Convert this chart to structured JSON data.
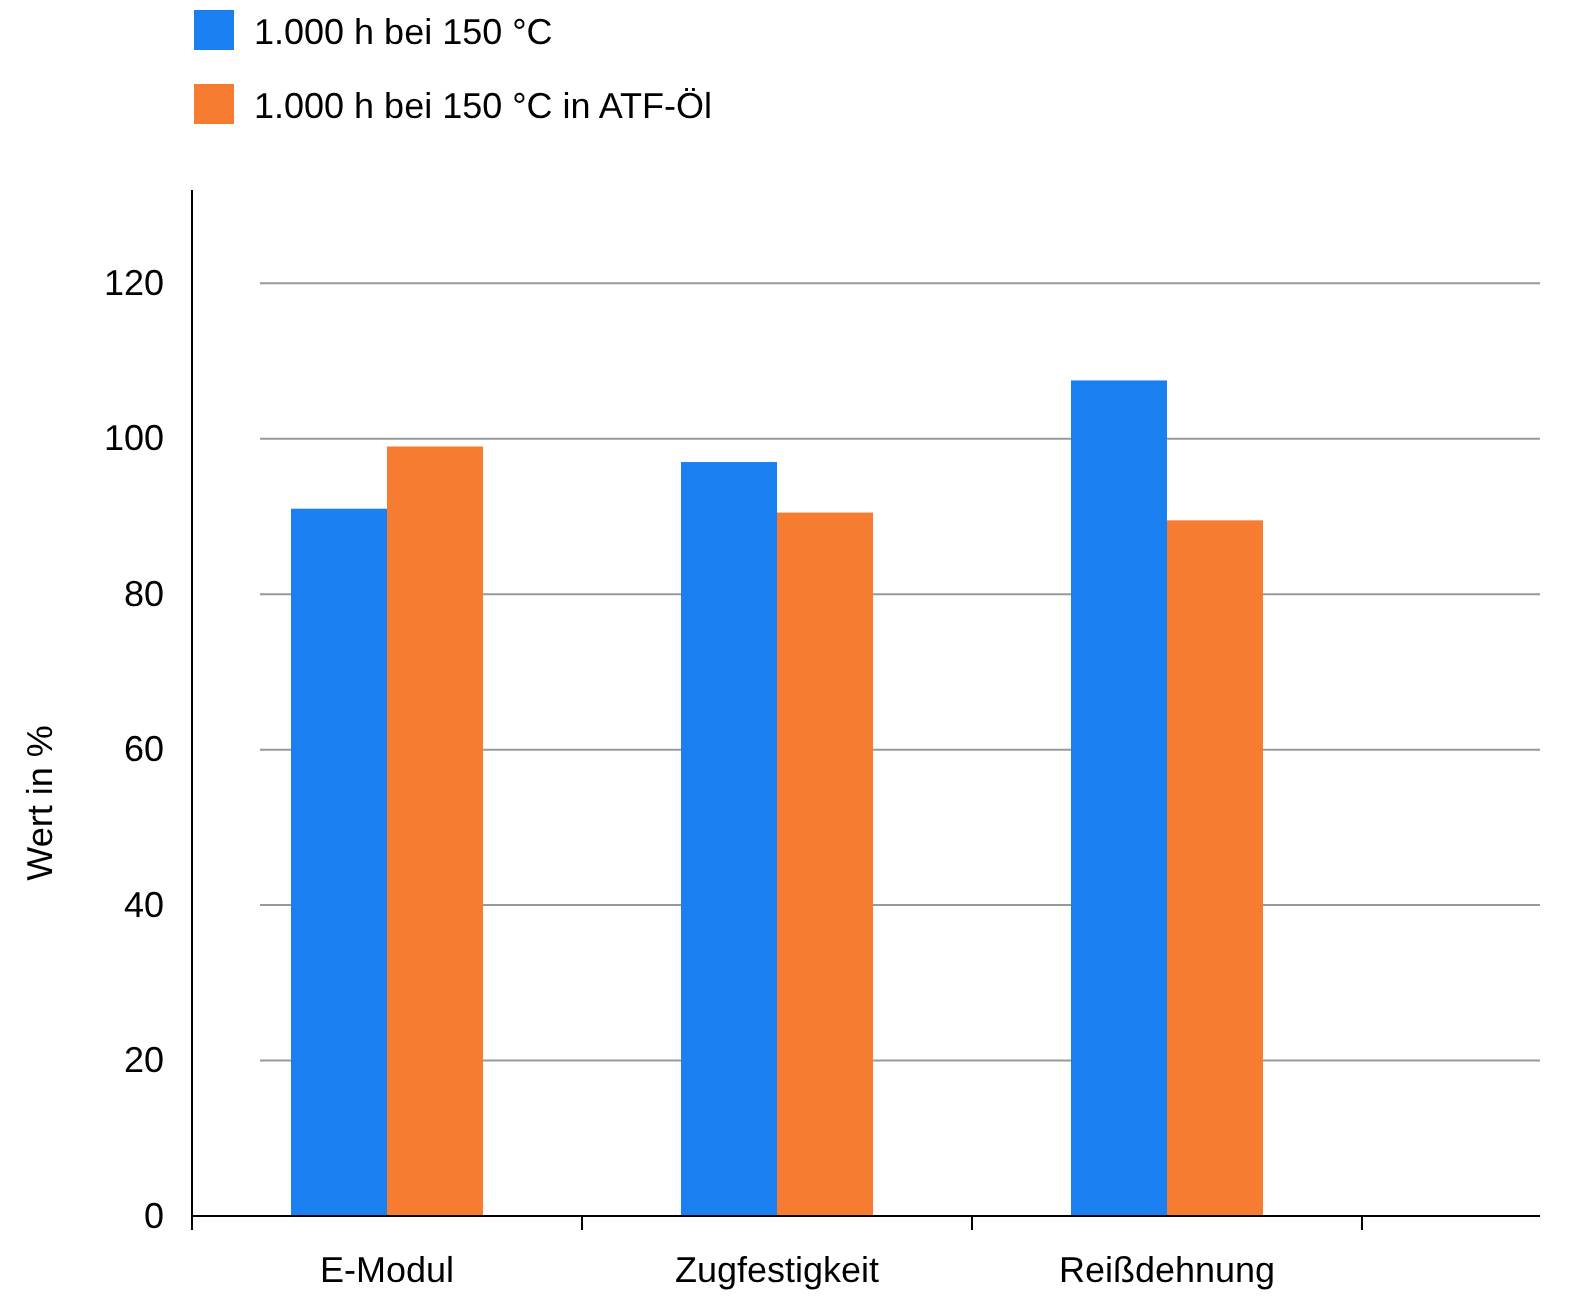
{
  "chart_data": {
    "type": "bar",
    "ylabel": "Wert in %",
    "categories": [
      "E-Modul",
      "Zugfestigkeit",
      "Reißdehnung"
    ],
    "series": [
      {
        "name": "1.000 h bei 150 °C",
        "color": "#1a7ff0",
        "values": [
          91,
          97,
          107.5
        ]
      },
      {
        "name": "1.000 h bei 150 °C in ATF-Öl",
        "color": "#f57c30",
        "values": [
          99,
          90.5,
          89.5
        ]
      }
    ],
    "ylim": [
      0,
      132
    ],
    "yticks": [
      0,
      20,
      40,
      60,
      80,
      100,
      120
    ],
    "grid": "y",
    "legend": "top left"
  }
}
